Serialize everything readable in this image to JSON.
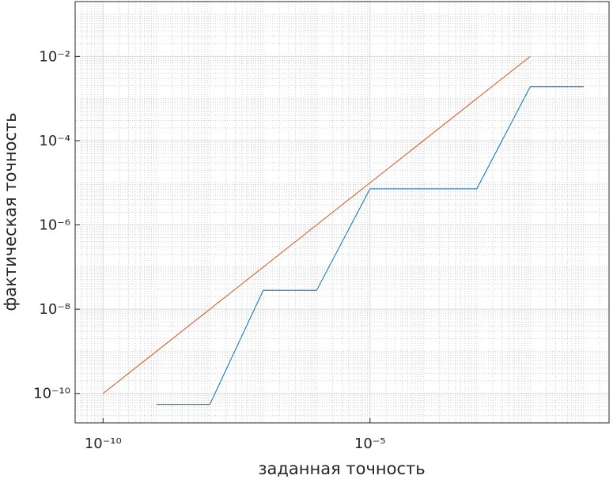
{
  "chart_data": {
    "type": "line",
    "xlabel": "заданная точность",
    "ylabel": "фактическая точность",
    "xlog": true,
    "ylog": true,
    "grid": true,
    "minor_grid": true,
    "xlim": [
      3e-11,
      0.3
    ],
    "ylim": [
      2e-11,
      0.2
    ],
    "xticks": [
      {
        "value": 1e-10,
        "label": "10⁻¹⁰"
      },
      {
        "value": 1e-05,
        "label": "10⁻⁵"
      }
    ],
    "yticks": [
      {
        "value": 1e-10,
        "label": "10⁻¹⁰"
      },
      {
        "value": 1e-08,
        "label": "10⁻⁸"
      },
      {
        "value": 1e-06,
        "label": "10⁻⁶"
      },
      {
        "value": 0.0001,
        "label": "10⁻⁴"
      },
      {
        "value": 0.01,
        "label": "10⁻²"
      }
    ],
    "series": [
      {
        "color": "#0072bd",
        "x": [
          1e-09,
          1e-08,
          1e-07,
          1e-06,
          1e-05,
          0.0001,
          0.001,
          0.01,
          0.1
        ],
        "values": [
          5.5e-11,
          5.5e-11,
          2.8e-08,
          2.8e-08,
          7.2e-06,
          7.2e-06,
          7.2e-06,
          0.0019,
          0.0019
        ]
      },
      {
        "color": "#d95319",
        "x": [
          1e-10,
          1e-09,
          1e-08,
          1e-07,
          1e-06,
          1e-05,
          0.0001,
          0.001,
          0.01
        ],
        "values": [
          1e-10,
          1e-09,
          1e-08,
          1e-07,
          1e-06,
          1e-05,
          0.0001,
          0.001,
          0.01
        ]
      }
    ]
  }
}
